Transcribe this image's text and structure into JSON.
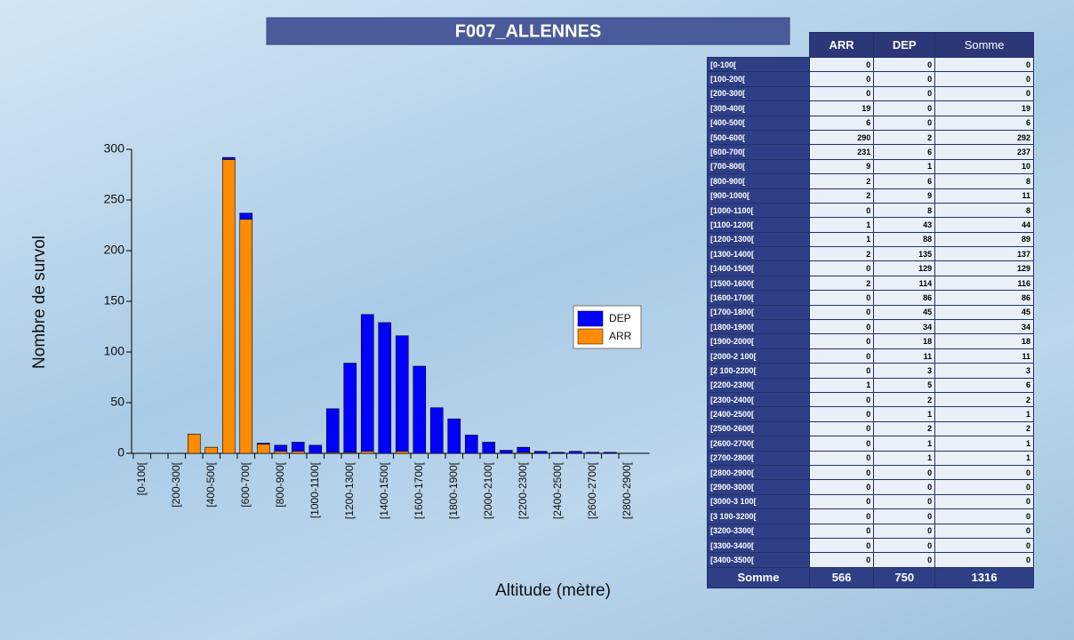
{
  "chart_data": {
    "type": "bar",
    "stacked": true,
    "title": "F007_ALLENNES",
    "ylabel": "Nombre de survol",
    "xlabel": "Altitude (mètre)",
    "categories": [
      "[0-100[",
      null,
      "[200-300[",
      null,
      "[400-500[",
      null,
      "[600-700[",
      null,
      "[800-900[",
      null,
      "[1000-1100[",
      null,
      "[1200-1300[",
      null,
      "[1400-1500[",
      null,
      "[1600-1700[",
      null,
      "[1800-1900[",
      null,
      "[2000-2100[",
      null,
      "[2200-2300[",
      null,
      "[2400-2500[",
      null,
      "[2600-2700[",
      null,
      "[2800-2900["
    ],
    "series": [
      {
        "name": "ARR",
        "color": "#ff8c00",
        "values": [
          0,
          0,
          0,
          19,
          6,
          290,
          231,
          9,
          2,
          2,
          0,
          1,
          1,
          2,
          0,
          2,
          0,
          0,
          0,
          0,
          0,
          0,
          1,
          0,
          0,
          0,
          0,
          0,
          0
        ]
      },
      {
        "name": "DEP",
        "color": "#0000ff",
        "values": [
          0,
          0,
          0,
          0,
          0,
          2,
          6,
          1,
          6,
          9,
          8,
          43,
          88,
          135,
          129,
          114,
          86,
          45,
          34,
          18,
          11,
          3,
          5,
          2,
          1,
          2,
          1,
          1,
          0
        ]
      }
    ],
    "legend_order": [
      "DEP",
      "ARR"
    ],
    "ylim": [
      0,
      300
    ],
    "yticks": [
      0,
      50,
      100,
      150,
      200,
      250,
      300
    ]
  },
  "table": {
    "columns": [
      "ARR",
      "DEP",
      "Somme"
    ],
    "rows": [
      [
        "[0-100[",
        0,
        0,
        0
      ],
      [
        "[100-200[",
        0,
        0,
        0
      ],
      [
        "[200-300[",
        0,
        0,
        0
      ],
      [
        "[300-400[",
        19,
        0,
        19
      ],
      [
        "[400-500[",
        6,
        0,
        6
      ],
      [
        "[500-600[",
        290,
        2,
        292
      ],
      [
        "[600-700[",
        231,
        6,
        237
      ],
      [
        "[700-800[",
        9,
        1,
        10
      ],
      [
        "[800-900[",
        2,
        6,
        8
      ],
      [
        "[900-1000[",
        2,
        9,
        11
      ],
      [
        "[1000-1100[",
        0,
        8,
        8
      ],
      [
        "[1100-1200[",
        1,
        43,
        44
      ],
      [
        "[1200-1300[",
        1,
        88,
        89
      ],
      [
        "[1300-1400[",
        2,
        135,
        137
      ],
      [
        "[1400-1500[",
        0,
        129,
        129
      ],
      [
        "[1500-1600[",
        2,
        114,
        116
      ],
      [
        "[1600-1700[",
        0,
        86,
        86
      ],
      [
        "[1700-1800[",
        0,
        45,
        45
      ],
      [
        "[1800-1900[",
        0,
        34,
        34
      ],
      [
        "[1900-2000[",
        0,
        18,
        18
      ],
      [
        "[2000-2 100[",
        0,
        11,
        11
      ],
      [
        "[2 100-2200[",
        0,
        3,
        3
      ],
      [
        "[2200-2300[",
        1,
        5,
        6
      ],
      [
        "[2300-2400[",
        0,
        2,
        2
      ],
      [
        "[2400-2500[",
        0,
        1,
        1
      ],
      [
        "[2500-2600[",
        0,
        2,
        2
      ],
      [
        "[2600-2700[",
        0,
        1,
        1
      ],
      [
        "[2700-2800[",
        0,
        1,
        1
      ],
      [
        "[2800-2900[",
        0,
        0,
        0
      ],
      [
        "[2900-3000[",
        0,
        0,
        0
      ],
      [
        "[3000-3 100[",
        0,
        0,
        0
      ],
      [
        "[3 100-3200[",
        0,
        0,
        0
      ],
      [
        "[3200-3300[",
        0,
        0,
        0
      ],
      [
        "[3300-3400[",
        0,
        0,
        0
      ],
      [
        "[3400-3500[",
        0,
        0,
        0
      ]
    ],
    "footer": [
      "Somme",
      566,
      750,
      1316
    ]
  }
}
